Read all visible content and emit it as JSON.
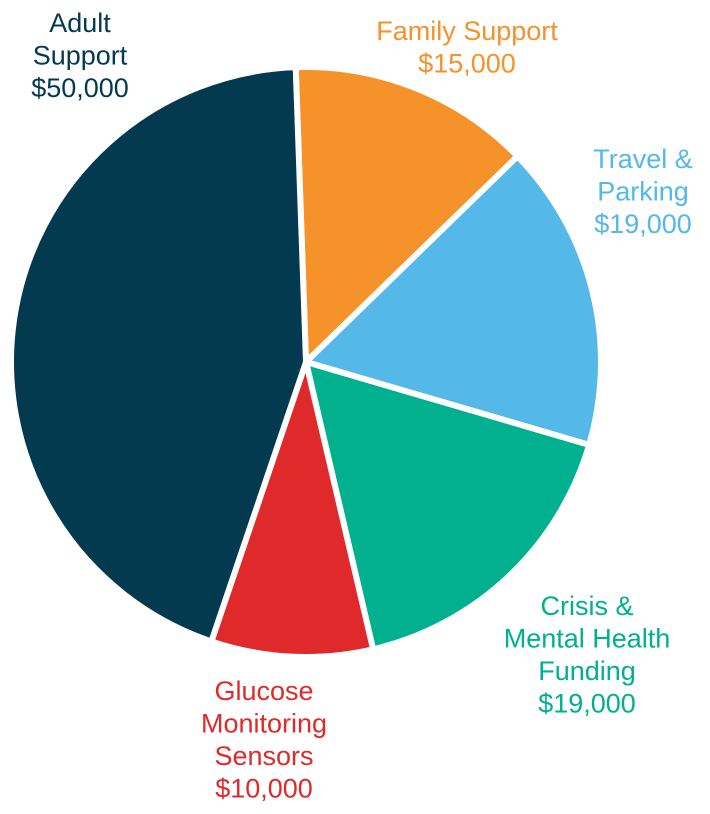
{
  "chart_data": {
    "type": "pie",
    "categories": [
      [
        "Family Support"
      ],
      [
        "Travel &",
        "Parking"
      ],
      [
        "Crisis &",
        "Mental Health",
        "Funding"
      ],
      [
        "Glucose",
        "Monitoring",
        "Sensors"
      ],
      [
        "Adult",
        "Support"
      ]
    ],
    "values": [
      15000,
      19000,
      19000,
      10000,
      50000
    ],
    "value_labels": [
      "$15,000",
      "$19,000",
      "$19,000",
      "$10,000",
      "$50,000"
    ],
    "colors": [
      "#f5922a",
      "#54b8e8",
      "#00b08f",
      "#e0292a",
      "#033a4f"
    ]
  }
}
